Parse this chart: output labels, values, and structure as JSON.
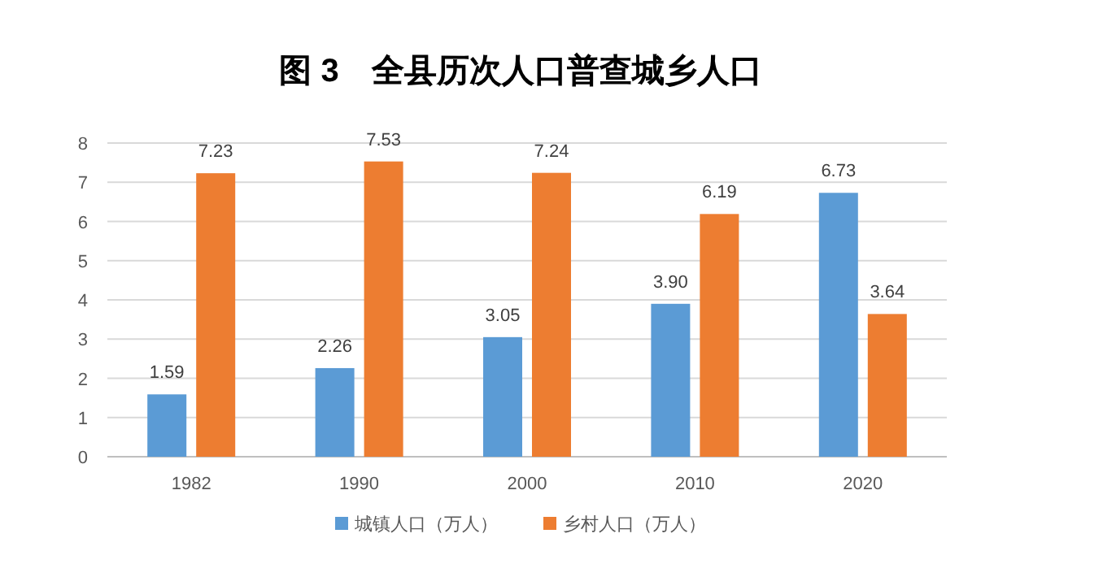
{
  "chart_data": {
    "type": "bar",
    "title": "图 3　全县历次人口普查城乡人口",
    "categories": [
      "1982",
      "1990",
      "2000",
      "2010",
      "2020"
    ],
    "series": [
      {
        "name": "城镇人口（万人）",
        "color": "#5b9bd5",
        "values": [
          1.59,
          2.26,
          3.05,
          3.9,
          6.73
        ],
        "value_labels": [
          "1.59",
          "2.26",
          "3.05",
          "3.90",
          "6.73"
        ]
      },
      {
        "name": "乡村人口（万人）",
        "color": "#ed7d31",
        "values": [
          7.23,
          7.53,
          7.24,
          6.19,
          3.64
        ],
        "value_labels": [
          "7.23",
          "7.53",
          "7.24",
          "6.19",
          "3.64"
        ]
      }
    ],
    "ylim": [
      0,
      8
    ],
    "yticks": [
      0,
      1,
      2,
      3,
      4,
      5,
      6,
      7,
      8
    ],
    "grid": "y",
    "legend": "bottom"
  }
}
